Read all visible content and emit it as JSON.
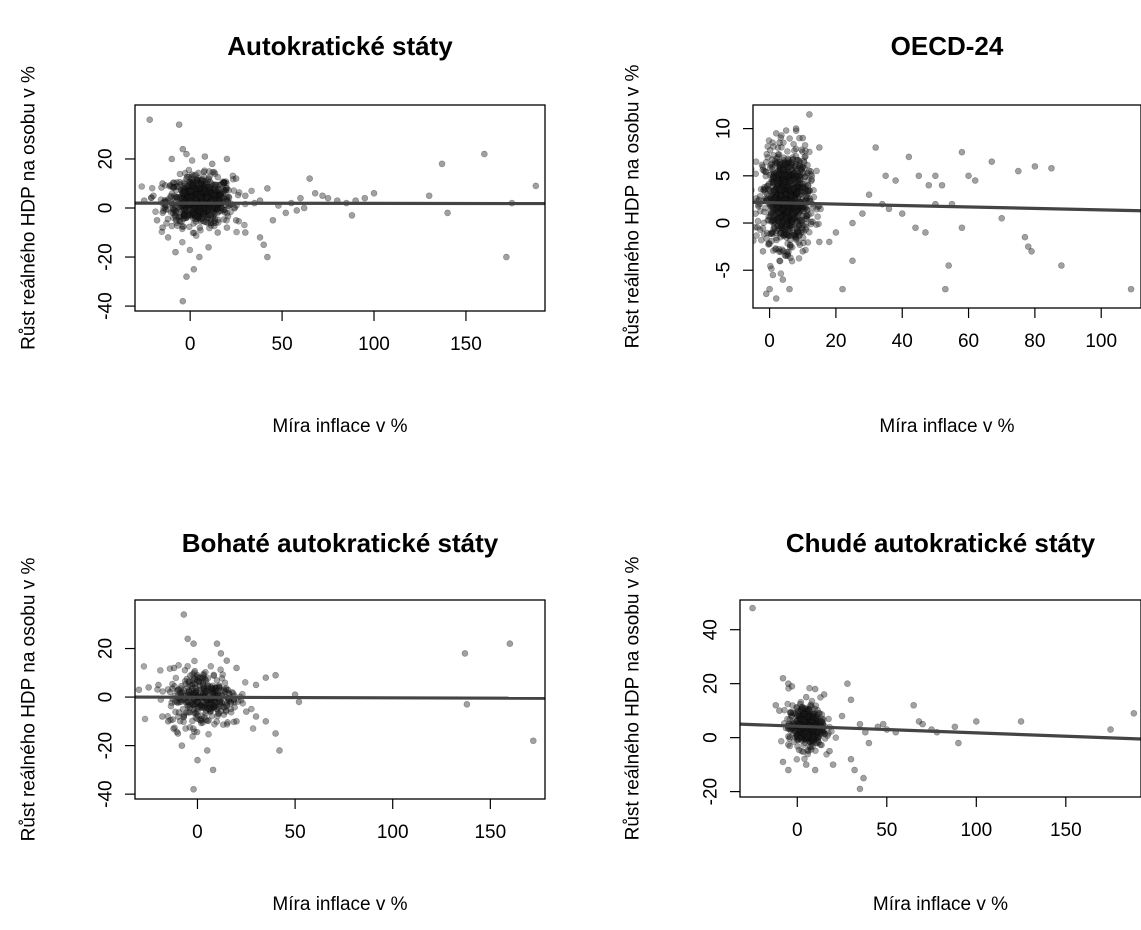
{
  "chart_data": [
    {
      "type": "scatter",
      "title": "Autokratické státy",
      "xlabel": "Míra inflace v %",
      "ylabel": "Růst reálného HDP na osobu v %",
      "xlim": [
        -30,
        193
      ],
      "ylim": [
        -42,
        42
      ],
      "xticks": [
        0,
        50,
        100,
        150
      ],
      "yticks": [
        -40,
        -20,
        0,
        20
      ],
      "grid": false,
      "cluster": {
        "center": [
          5,
          3
        ],
        "spread": [
          9,
          5
        ],
        "count": 700
      },
      "points": [
        [
          -22,
          36
        ],
        [
          -6,
          34
        ],
        [
          -4,
          24
        ],
        [
          -10,
          20
        ],
        [
          -2,
          22
        ],
        [
          8,
          21
        ],
        [
          12,
          18
        ],
        [
          -15,
          10
        ],
        [
          25,
          12
        ],
        [
          20,
          20
        ],
        [
          -20,
          5
        ],
        [
          -25,
          3
        ],
        [
          30,
          5
        ],
        [
          35,
          2
        ],
        [
          38,
          3
        ],
        [
          42,
          8
        ],
        [
          48,
          1
        ],
        [
          52,
          -2
        ],
        [
          45,
          -5
        ],
        [
          38,
          -12
        ],
        [
          40,
          -15
        ],
        [
          42,
          -20
        ],
        [
          30,
          -10
        ],
        [
          10,
          -16
        ],
        [
          5,
          -20
        ],
        [
          2,
          -25
        ],
        [
          -2,
          -28
        ],
        [
          -4,
          -38
        ],
        [
          -8,
          -18
        ],
        [
          -12,
          -12
        ],
        [
          -18,
          -5
        ],
        [
          -15,
          -8
        ],
        [
          15,
          -10
        ],
        [
          20,
          -8
        ],
        [
          25,
          -5
        ],
        [
          65,
          12
        ],
        [
          68,
          6
        ],
        [
          72,
          5
        ],
        [
          75,
          4
        ],
        [
          80,
          3
        ],
        [
          85,
          2
        ],
        [
          90,
          3
        ],
        [
          95,
          4
        ],
        [
          88,
          -3
        ],
        [
          100,
          6
        ],
        [
          130,
          5
        ],
        [
          137,
          18
        ],
        [
          140,
          -2
        ],
        [
          160,
          22
        ],
        [
          172,
          -20
        ],
        [
          175,
          2
        ],
        [
          188,
          9
        ],
        [
          60,
          4
        ],
        [
          58,
          -1
        ],
        [
          55,
          2
        ],
        [
          62,
          0
        ]
      ],
      "fit": {
        "x": [
          -30,
          193
        ],
        "y": [
          2,
          1.8
        ]
      }
    },
    {
      "type": "scatter",
      "title": "OECD-24",
      "xlabel": "Míra inflace v %",
      "ylabel": "Růst reálného HDP na osobu v %",
      "xlim": [
        -5,
        112
      ],
      "ylim": [
        -9,
        12.5
      ],
      "xticks": [
        0,
        20,
        40,
        60,
        80,
        100
      ],
      "yticks": [
        -5,
        0,
        5,
        10
      ],
      "grid": false,
      "cluster": {
        "center": [
          5,
          2.5
        ],
        "spread": [
          3.5,
          2.5
        ],
        "count": 900
      },
      "points": [
        [
          12,
          11.5
        ],
        [
          8,
          10
        ],
        [
          2,
          9.5
        ],
        [
          5,
          9.8
        ],
        [
          15,
          8
        ],
        [
          10,
          9
        ],
        [
          3,
          8.5
        ],
        [
          -2,
          -3
        ],
        [
          0,
          -7
        ],
        [
          2,
          -8
        ],
        [
          -1,
          -7.5
        ],
        [
          4,
          -6
        ],
        [
          1,
          -5.5
        ],
        [
          6,
          -7
        ],
        [
          3,
          -4
        ],
        [
          10,
          -3
        ],
        [
          15,
          -2
        ],
        [
          20,
          -1
        ],
        [
          22,
          -7
        ],
        [
          25,
          -4
        ],
        [
          30,
          3
        ],
        [
          32,
          8
        ],
        [
          35,
          5
        ],
        [
          38,
          4.5
        ],
        [
          42,
          7
        ],
        [
          40,
          1
        ],
        [
          45,
          5
        ],
        [
          48,
          4
        ],
        [
          50,
          5
        ],
        [
          52,
          4
        ],
        [
          55,
          2
        ],
        [
          58,
          7.5
        ],
        [
          60,
          5
        ],
        [
          62,
          4.5
        ],
        [
          67,
          6.5
        ],
        [
          75,
          5.5
        ],
        [
          80,
          6
        ],
        [
          85,
          5.8
        ],
        [
          70,
          0.5
        ],
        [
          77,
          -1.5
        ],
        [
          78,
          -2.5
        ],
        [
          79,
          -3
        ],
        [
          88,
          -4.5
        ],
        [
          109,
          -7
        ],
        [
          53,
          -7
        ],
        [
          54,
          -4.5
        ],
        [
          44,
          -0.5
        ],
        [
          47,
          -1
        ],
        [
          58,
          -0.5
        ],
        [
          34,
          2
        ],
        [
          28,
          1
        ],
        [
          25,
          0
        ],
        [
          18,
          -2
        ],
        [
          36,
          1.5
        ],
        [
          50,
          2
        ]
      ],
      "fit": {
        "x": [
          -5,
          112
        ],
        "y": [
          2.2,
          1.3
        ]
      }
    },
    {
      "type": "scatter",
      "title": "Bohaté autokratické státy",
      "xlabel": "Míra inflace v %",
      "ylabel": "Růst reálného HDP na osobu v %",
      "xlim": [
        -32,
        178
      ],
      "ylim": [
        -42,
        40
      ],
      "xticks": [
        0,
        50,
        100,
        150
      ],
      "yticks": [
        -40,
        -20,
        0,
        20
      ],
      "grid": false,
      "cluster": {
        "center": [
          3,
          0
        ],
        "spread": [
          9,
          6
        ],
        "count": 350
      },
      "points": [
        [
          -7,
          34
        ],
        [
          -5,
          24
        ],
        [
          -2,
          22
        ],
        [
          10,
          22
        ],
        [
          12,
          18
        ],
        [
          -20,
          5
        ],
        [
          -25,
          4
        ],
        [
          -30,
          3
        ],
        [
          30,
          5
        ],
        [
          35,
          8
        ],
        [
          40,
          9
        ],
        [
          40,
          -15
        ],
        [
          42,
          -22
        ],
        [
          35,
          -10
        ],
        [
          30,
          -8
        ],
        [
          5,
          -22
        ],
        [
          0,
          -26
        ],
        [
          -2,
          -38
        ],
        [
          -10,
          -15
        ],
        [
          -15,
          -10
        ],
        [
          -18,
          -8
        ],
        [
          20,
          -10
        ],
        [
          25,
          -6
        ],
        [
          50,
          1
        ],
        [
          52,
          -2
        ],
        [
          137,
          18
        ],
        [
          138,
          -3
        ],
        [
          160,
          22
        ],
        [
          172,
          -18
        ],
        [
          -12,
          12
        ],
        [
          15,
          15
        ],
        [
          -8,
          -20
        ],
        [
          8,
          -30
        ],
        [
          20,
          12
        ]
      ],
      "fit": {
        "x": [
          -32,
          178
        ],
        "y": [
          0,
          -0.5
        ]
      }
    },
    {
      "type": "scatter",
      "title": "Chudé autokratické státy",
      "xlabel": "Míra inflace v %",
      "ylabel": "Růst reálného HDP na osobu v %",
      "xlim": [
        -32,
        192
      ],
      "ylim": [
        -22,
        51
      ],
      "xticks": [
        0,
        50,
        100,
        150
      ],
      "yticks": [
        -20,
        0,
        20,
        40
      ],
      "grid": false,
      "cluster": {
        "center": [
          5,
          4
        ],
        "spread": [
          5,
          4
        ],
        "count": 400
      },
      "points": [
        [
          -25,
          48
        ],
        [
          -8,
          22
        ],
        [
          -5,
          20
        ],
        [
          -3,
          19
        ],
        [
          5,
          15
        ],
        [
          10,
          18
        ],
        [
          15,
          16
        ],
        [
          -10,
          10
        ],
        [
          -12,
          12
        ],
        [
          28,
          20
        ],
        [
          30,
          14
        ],
        [
          35,
          5
        ],
        [
          38,
          2
        ],
        [
          40,
          -2
        ],
        [
          30,
          -8
        ],
        [
          32,
          -12
        ],
        [
          35,
          -19
        ],
        [
          37,
          -15
        ],
        [
          20,
          -10
        ],
        [
          18,
          -5
        ],
        [
          10,
          -12
        ],
        [
          5,
          -10
        ],
        [
          -5,
          -12
        ],
        [
          -8,
          -9
        ],
        [
          48,
          5
        ],
        [
          50,
          3
        ],
        [
          65,
          12
        ],
        [
          68,
          6
        ],
        [
          70,
          5
        ],
        [
          75,
          3
        ],
        [
          78,
          2
        ],
        [
          88,
          4
        ],
        [
          90,
          -2
        ],
        [
          100,
          6
        ],
        [
          125,
          6
        ],
        [
          175,
          3
        ],
        [
          188,
          9
        ],
        [
          45,
          4
        ],
        [
          55,
          2
        ],
        [
          25,
          8
        ]
      ],
      "fit": {
        "x": [
          -32,
          192
        ],
        "y": [
          5,
          -0.5
        ]
      }
    }
  ]
}
